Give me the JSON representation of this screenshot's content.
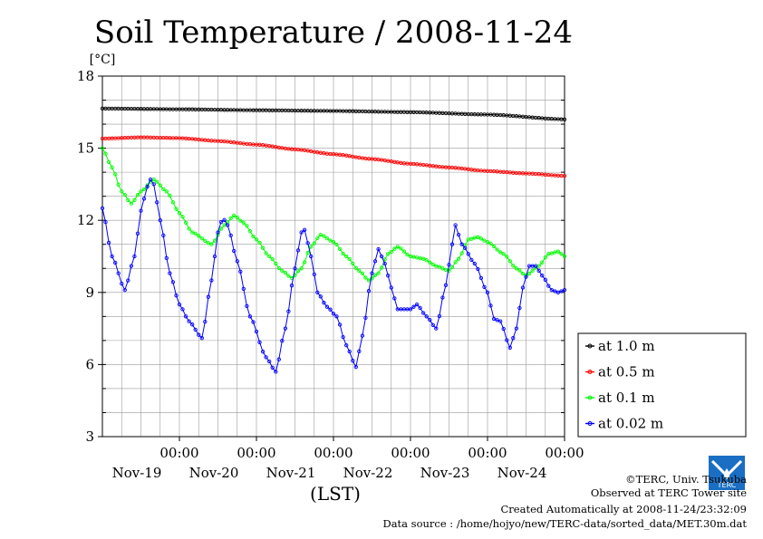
{
  "chart_data": {
    "type": "line",
    "title": "Soil Temperature / 2008-11-24",
    "ylabel": "[°C]",
    "xlabel": "(LST)",
    "ylim": [
      3,
      18
    ],
    "yticks": [
      3,
      6,
      9,
      12,
      15,
      18
    ],
    "xlim": [
      0,
      144
    ],
    "xticks": [
      {
        "x": 24,
        "time": "00:00",
        "date": "Nov-19"
      },
      {
        "x": 48,
        "time": "00:00",
        "date": "Nov-20"
      },
      {
        "x": 72,
        "time": "00:00",
        "date": "Nov-21"
      },
      {
        "x": 96,
        "time": "00:00",
        "date": "Nov-22"
      },
      {
        "x": 120,
        "time": "00:00",
        "date": "Nov-23"
      },
      {
        "x": 144,
        "time": "00:00",
        "date": "Nov-24"
      }
    ],
    "grid": true,
    "legend_position": "right",
    "series": [
      {
        "name": "at 1.0 m",
        "color": "#000000",
        "points": [
          [
            0,
            16.65
          ],
          [
            24,
            16.62
          ],
          [
            48,
            16.58
          ],
          [
            72,
            16.55
          ],
          [
            96,
            16.5
          ],
          [
            120,
            16.4
          ],
          [
            144,
            16.2
          ]
        ]
      },
      {
        "name": "at 0.5 m",
        "color": "#ff0000",
        "points": [
          [
            0,
            15.4
          ],
          [
            12,
            15.45
          ],
          [
            24,
            15.42
          ],
          [
            36,
            15.3
          ],
          [
            48,
            15.15
          ],
          [
            60,
            14.95
          ],
          [
            72,
            14.75
          ],
          [
            84,
            14.55
          ],
          [
            96,
            14.35
          ],
          [
            108,
            14.2
          ],
          [
            120,
            14.05
          ],
          [
            132,
            13.95
          ],
          [
            144,
            13.85
          ]
        ]
      },
      {
        "name": "at 0.1 m",
        "color": "#00ff00",
        "points": [
          [
            0,
            15
          ],
          [
            3,
            14.2
          ],
          [
            6,
            13.2
          ],
          [
            9,
            12.7
          ],
          [
            12,
            13.2
          ],
          [
            16,
            13.7
          ],
          [
            20,
            13.2
          ],
          [
            24,
            12.3
          ],
          [
            28,
            11.5
          ],
          [
            34,
            11
          ],
          [
            38,
            11.8
          ],
          [
            41,
            12.2
          ],
          [
            44,
            11.9
          ],
          [
            48,
            11.2
          ],
          [
            52,
            10.5
          ],
          [
            56,
            9.9
          ],
          [
            59,
            9.6
          ],
          [
            62,
            10
          ],
          [
            65,
            10.9
          ],
          [
            68,
            11.4
          ],
          [
            72,
            11.1
          ],
          [
            76,
            10.5
          ],
          [
            80,
            9.9
          ],
          [
            83,
            9.5
          ],
          [
            86,
            9.8
          ],
          [
            89,
            10.6
          ],
          [
            92,
            10.9
          ],
          [
            96,
            10.5
          ],
          [
            100,
            10.4
          ],
          [
            104,
            10.1
          ],
          [
            108,
            9.9
          ],
          [
            111,
            10.4
          ],
          [
            114,
            11.2
          ],
          [
            117,
            11.3
          ],
          [
            120,
            11.1
          ],
          [
            125,
            10.6
          ],
          [
            129,
            10
          ],
          [
            132,
            9.7
          ],
          [
            136,
            10.1
          ],
          [
            139,
            10.6
          ],
          [
            142,
            10.7
          ],
          [
            144,
            10.5
          ]
        ]
      },
      {
        "name": "at 0.02 m",
        "color": "#0000ff",
        "points": [
          [
            0,
            12.5
          ],
          [
            3,
            10.5
          ],
          [
            7,
            9.1
          ],
          [
            10,
            10.5
          ],
          [
            12,
            12.4
          ],
          [
            14,
            13.4
          ],
          [
            15,
            13.7
          ],
          [
            16,
            13.5
          ],
          [
            18,
            12
          ],
          [
            21,
            9.8
          ],
          [
            24,
            8.5
          ],
          [
            27,
            7.8
          ],
          [
            31,
            7.1
          ],
          [
            34,
            9.5
          ],
          [
            36,
            11.5
          ],
          [
            37.5,
            12.1
          ],
          [
            39,
            11.8
          ],
          [
            42,
            10.3
          ],
          [
            46,
            8
          ],
          [
            51,
            6.3
          ],
          [
            54,
            5.7
          ],
          [
            57,
            7.5
          ],
          [
            60,
            10
          ],
          [
            62,
            11.5
          ],
          [
            63,
            11.6
          ],
          [
            65,
            10.5
          ],
          [
            67,
            9
          ],
          [
            70,
            8.4
          ],
          [
            73,
            8
          ],
          [
            76,
            6.8
          ],
          [
            79,
            5.9
          ],
          [
            81,
            7.2
          ],
          [
            84,
            9.8
          ],
          [
            86,
            10.8
          ],
          [
            88,
            10.2
          ],
          [
            90,
            9.2
          ],
          [
            92,
            8.3
          ],
          [
            96,
            8.3
          ],
          [
            98,
            8.5
          ],
          [
            101,
            8
          ],
          [
            104,
            7.5
          ],
          [
            107,
            9.3
          ],
          [
            109,
            11
          ],
          [
            110,
            11.8
          ],
          [
            112,
            11
          ],
          [
            116,
            10.2
          ],
          [
            120,
            9
          ],
          [
            122,
            7.9
          ],
          [
            124,
            7.8
          ],
          [
            127,
            6.7
          ],
          [
            129,
            7.5
          ],
          [
            131,
            9.2
          ],
          [
            133,
            10.1
          ],
          [
            135,
            10.1
          ],
          [
            137,
            9.7
          ],
          [
            140,
            9.1
          ],
          [
            142,
            9
          ],
          [
            144,
            9.1
          ]
        ]
      }
    ]
  },
  "footer": {
    "copyright": "©TERC, Univ. Tsukuba",
    "observed": "Observed at TERC Tower site",
    "created": "Created Automatically at 2008-11-24/23:32:09",
    "source": "Data source : /home/hojyo/new/TERC-data/sorted_data/MET.30m.dat"
  },
  "logo": {
    "text": "TERC"
  }
}
